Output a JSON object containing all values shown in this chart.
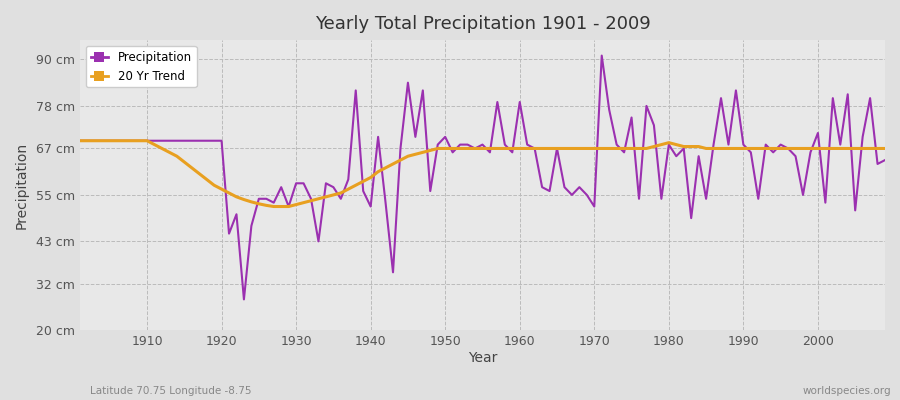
{
  "title": "Yearly Total Precipitation 1901 - 2009",
  "xlabel": "Year",
  "ylabel": "Precipitation",
  "subtitle_lat_lon": "Latitude 70.75 Longitude -8.75",
  "watermark": "worldspecies.org",
  "background_color": "#e0e0e0",
  "plot_bg_color": "#e8e8e8",
  "precip_color": "#9b30b0",
  "trend_color": "#e8a020",
  "ylim": [
    20,
    95
  ],
  "yticks": [
    20,
    32,
    43,
    55,
    67,
    78,
    90
  ],
  "ytick_labels": [
    "20 cm",
    "32 cm",
    "43 cm",
    "55 cm",
    "67 cm",
    "78 cm",
    "90 cm"
  ],
  "years": [
    1901,
    1902,
    1903,
    1904,
    1905,
    1906,
    1907,
    1908,
    1909,
    1910,
    1911,
    1912,
    1913,
    1914,
    1915,
    1916,
    1917,
    1918,
    1919,
    1920,
    1921,
    1922,
    1923,
    1924,
    1925,
    1926,
    1927,
    1928,
    1929,
    1930,
    1931,
    1932,
    1933,
    1934,
    1935,
    1936,
    1937,
    1938,
    1939,
    1940,
    1941,
    1942,
    1943,
    1944,
    1945,
    1946,
    1947,
    1948,
    1949,
    1950,
    1951,
    1952,
    1953,
    1954,
    1955,
    1956,
    1957,
    1958,
    1959,
    1960,
    1961,
    1962,
    1963,
    1964,
    1965,
    1966,
    1967,
    1968,
    1969,
    1970,
    1971,
    1972,
    1973,
    1974,
    1975,
    1976,
    1977,
    1978,
    1979,
    1980,
    1981,
    1982,
    1983,
    1984,
    1985,
    1986,
    1987,
    1988,
    1989,
    1990,
    1991,
    1992,
    1993,
    1994,
    1995,
    1996,
    1997,
    1998,
    1999,
    2000,
    2001,
    2002,
    2003,
    2004,
    2005,
    2006,
    2007,
    2008,
    2009
  ],
  "precip": [
    69.0,
    69.0,
    69.0,
    69.0,
    69.0,
    69.0,
    69.0,
    69.0,
    69.0,
    69.0,
    69.0,
    69.0,
    69.0,
    69.0,
    69.0,
    69.0,
    69.0,
    69.0,
    69.0,
    69.0,
    45.0,
    50.0,
    28.0,
    47.0,
    54.0,
    54.0,
    53.0,
    57.0,
    52.0,
    58.0,
    58.0,
    54.0,
    43.0,
    58.0,
    57.0,
    54.0,
    59.0,
    82.0,
    56.0,
    52.0,
    70.0,
    53.0,
    35.0,
    67.0,
    84.0,
    70.0,
    82.0,
    56.0,
    68.0,
    70.0,
    66.0,
    68.0,
    68.0,
    67.0,
    68.0,
    66.0,
    79.0,
    68.0,
    66.0,
    79.0,
    68.0,
    67.0,
    57.0,
    56.0,
    67.0,
    57.0,
    55.0,
    57.0,
    55.0,
    52.0,
    91.0,
    77.0,
    68.0,
    66.0,
    75.0,
    54.0,
    78.0,
    73.0,
    54.0,
    68.0,
    65.0,
    67.0,
    49.0,
    65.0,
    54.0,
    68.0,
    80.0,
    68.0,
    82.0,
    68.0,
    66.0,
    54.0,
    68.0,
    66.0,
    68.0,
    67.0,
    65.0,
    55.0,
    66.0,
    71.0,
    53.0,
    80.0,
    68.0,
    81.0,
    51.0,
    70.0,
    80.0,
    63.0,
    64.0
  ],
  "trend_years": [
    1901,
    1902,
    1903,
    1904,
    1905,
    1906,
    1907,
    1908,
    1909,
    1910,
    1911,
    1912,
    1913,
    1914,
    1915,
    1916,
    1917,
    1918,
    1919,
    1920,
    1921,
    1922,
    1923,
    1924,
    1925,
    1926,
    1927,
    1928,
    1929,
    1930,
    1931,
    1932,
    1933,
    1934,
    1935,
    1936,
    1937,
    1938,
    1939,
    1940,
    1941,
    1942,
    1943,
    1944,
    1945,
    1946,
    1947,
    1948,
    1949,
    1950,
    1951,
    1952,
    1953,
    1954,
    1955,
    1956,
    1957,
    1958,
    1959,
    1960,
    1961,
    1962,
    1963,
    1964,
    1965,
    1966,
    1967,
    1968,
    1969,
    1970,
    1971,
    1972,
    1973,
    1974,
    1975,
    1976,
    1977,
    1978,
    1979,
    1980,
    1981,
    1982,
    1983,
    1984,
    1985,
    1986,
    1987,
    1988,
    1989,
    1990,
    1991,
    1992,
    1993,
    1994,
    1995,
    1996,
    1997,
    1998,
    1999,
    2000,
    2001,
    2002,
    2003,
    2004,
    2005,
    2006,
    2007,
    2008,
    2009
  ],
  "trend": [
    69.0,
    69.0,
    69.0,
    69.0,
    69.0,
    69.0,
    69.0,
    69.0,
    69.0,
    69.0,
    68.0,
    67.0,
    66.0,
    65.0,
    63.5,
    62.0,
    60.5,
    59.0,
    57.5,
    56.5,
    55.5,
    54.5,
    53.8,
    53.2,
    52.7,
    52.3,
    52.0,
    52.0,
    52.0,
    52.5,
    53.0,
    53.5,
    54.0,
    54.5,
    55.0,
    55.5,
    56.5,
    57.5,
    58.5,
    59.5,
    61.0,
    62.0,
    63.0,
    64.0,
    65.0,
    65.5,
    66.0,
    66.5,
    67.0,
    67.0,
    67.0,
    67.0,
    67.0,
    67.0,
    67.0,
    67.0,
    67.0,
    67.0,
    67.0,
    67.0,
    67.0,
    67.0,
    67.0,
    67.0,
    67.0,
    67.0,
    67.0,
    67.0,
    67.0,
    67.0,
    67.0,
    67.0,
    67.0,
    67.0,
    67.0,
    67.0,
    67.0,
    67.5,
    68.0,
    68.5,
    68.0,
    67.5,
    67.5,
    67.5,
    67.0,
    67.0,
    67.0,
    67.0,
    67.0,
    67.0,
    67.0,
    67.0,
    67.0,
    67.0,
    67.0,
    67.0,
    67.0,
    67.0,
    67.0,
    67.0,
    67.0,
    67.0,
    67.0,
    67.0,
    67.0,
    67.0,
    67.0,
    67.0,
    67.0
  ]
}
